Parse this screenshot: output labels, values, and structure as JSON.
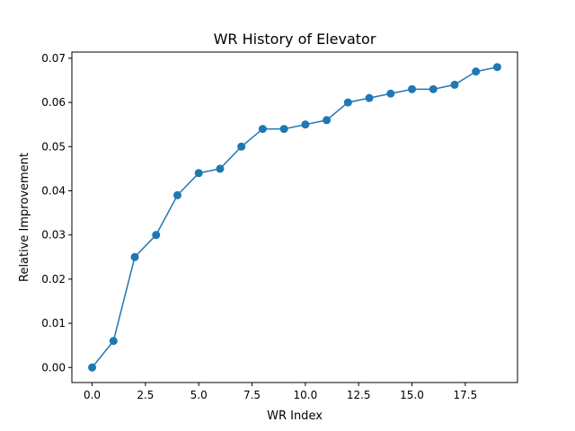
{
  "chart_data": {
    "type": "line",
    "title": "WR History of Elevator",
    "xlabel": "WR Index",
    "ylabel": "Relative Improvement",
    "xlim": [
      -0.95,
      19.95
    ],
    "ylim": [
      -0.0034,
      0.0714
    ],
    "grid": false,
    "marker": "circle",
    "color": "#1f77b4",
    "x_ticks": [
      0.0,
      2.5,
      5.0,
      7.5,
      10.0,
      12.5,
      15.0,
      17.5
    ],
    "x_tick_labels": [
      "0.0",
      "2.5",
      "5.0",
      "7.5",
      "10.0",
      "12.5",
      "15.0",
      "17.5"
    ],
    "y_ticks": [
      0.0,
      0.01,
      0.02,
      0.03,
      0.04,
      0.05,
      0.06,
      0.07
    ],
    "y_tick_labels": [
      "0.00",
      "0.01",
      "0.02",
      "0.03",
      "0.04",
      "0.05",
      "0.06",
      "0.07"
    ],
    "series": [
      {
        "x": [
          0,
          1,
          2,
          3,
          4,
          5,
          6,
          7,
          8,
          9,
          10,
          11,
          12,
          13,
          14,
          15,
          16,
          17,
          18,
          19
        ],
        "values": [
          0.0,
          0.006,
          0.025,
          0.03,
          0.039,
          0.044,
          0.045,
          0.05,
          0.054,
          0.054,
          0.055,
          0.056,
          0.06,
          0.061,
          0.062,
          0.063,
          0.063,
          0.064,
          0.067,
          0.068
        ]
      }
    ]
  }
}
